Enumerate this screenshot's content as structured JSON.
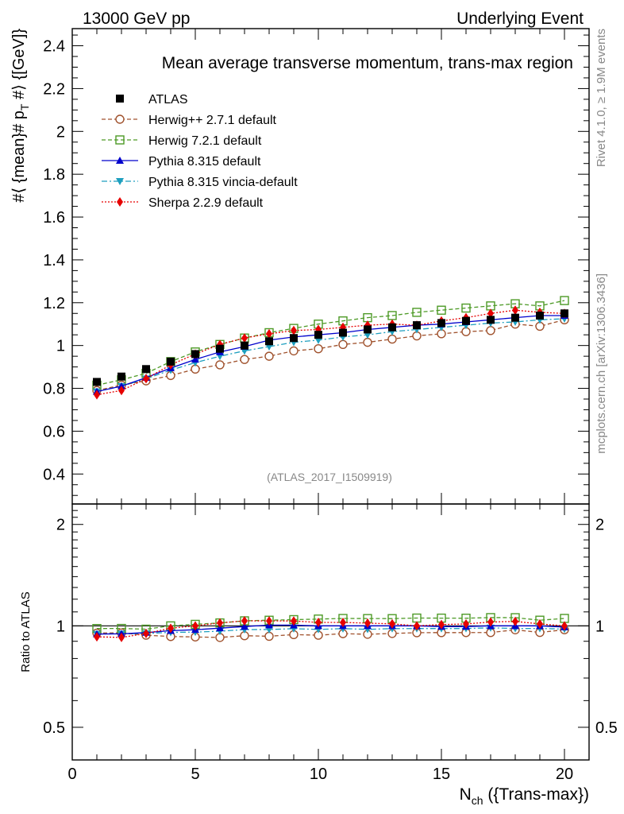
{
  "header": {
    "left": "13000 GeV pp",
    "right": "Underlying Event"
  },
  "side": {
    "rivet": "Rivet 4.1.0, ≥ 1.9M events",
    "mcplots": "mcplots.cern.ch [arXiv:1306.3436]"
  },
  "chart_data": {
    "type": "line",
    "title": "Mean average transverse momentum, trans-max region",
    "watermark": "(ATLAS_2017_I1509919)",
    "ylabel": "#⟨ {mean}# p_T #⟩ {[GeV]}",
    "ylabel_main": "#⟨ {mean}# p",
    "ylabel_sub": "T",
    "ylabel_rest": " #⟩ {[GeV]}",
    "xlabel_main": "N",
    "xlabel_sub": "ch",
    "xlabel_rest": " ({Trans-max})",
    "ratio_ylabel": "Ratio to ATLAS",
    "xlim": [
      0,
      21
    ],
    "ylim": [
      0.26,
      2.48
    ],
    "ratio_ylim": [
      0.4,
      2.3
    ],
    "xticks": [
      "0",
      "5",
      "10",
      "15",
      "20"
    ],
    "yticks": [
      "0.4",
      "0.6",
      "0.8",
      "1",
      "1.2",
      "1.4",
      "1.6",
      "1.8",
      "2",
      "2.2",
      "2.4"
    ],
    "ratio_yticks": [
      "0.5",
      "1",
      "2"
    ],
    "x": [
      1,
      2,
      3,
      4,
      5,
      6,
      7,
      8,
      9,
      10,
      11,
      12,
      13,
      14,
      15,
      16,
      17,
      18,
      19,
      20
    ],
    "series": [
      {
        "name": "ATLAS",
        "color": "#000000",
        "values": [
          0.83,
          0.855,
          0.89,
          0.925,
          0.96,
          0.985,
          1.0,
          1.02,
          1.035,
          1.05,
          1.06,
          1.075,
          1.085,
          1.095,
          1.105,
          1.115,
          1.12,
          1.13,
          1.14,
          1.15
        ]
      },
      {
        "name": "Herwig++ 2.7.1 default",
        "color": "#a0522d",
        "values": [
          0.79,
          0.815,
          0.835,
          0.86,
          0.89,
          0.91,
          0.935,
          0.95,
          0.975,
          0.985,
          1.005,
          1.015,
          1.03,
          1.045,
          1.055,
          1.065,
          1.07,
          1.1,
          1.09,
          1.12
        ]
      },
      {
        "name": "Herwig 7.2.1 default",
        "color": "#4d9a26",
        "values": [
          0.815,
          0.84,
          0.87,
          0.925,
          0.97,
          1.005,
          1.035,
          1.06,
          1.08,
          1.1,
          1.115,
          1.13,
          1.14,
          1.155,
          1.165,
          1.175,
          1.185,
          1.195,
          1.185,
          1.21
        ]
      },
      {
        "name": "Pythia 8.315 default",
        "color": "#0000cc",
        "values": [
          0.785,
          0.81,
          0.85,
          0.895,
          0.935,
          0.97,
          0.995,
          1.025,
          1.04,
          1.05,
          1.06,
          1.075,
          1.085,
          1.095,
          1.1,
          1.11,
          1.12,
          1.13,
          1.14,
          1.14
        ]
      },
      {
        "name": "Pythia 8.315 vincia-default",
        "color": "#1e9fbf",
        "values": [
          0.785,
          0.81,
          0.845,
          0.885,
          0.92,
          0.95,
          0.975,
          0.995,
          1.015,
          1.025,
          1.04,
          1.05,
          1.065,
          1.075,
          1.085,
          1.095,
          1.105,
          1.11,
          1.12,
          1.125
        ]
      },
      {
        "name": "Sherpa 2.2.9 default",
        "color": "#e60000",
        "values": [
          0.77,
          0.79,
          0.845,
          0.91,
          0.96,
          1.005,
          1.035,
          1.055,
          1.07,
          1.075,
          1.085,
          1.095,
          1.1,
          1.095,
          1.115,
          1.13,
          1.15,
          1.165,
          1.155,
          1.15
        ]
      }
    ]
  }
}
